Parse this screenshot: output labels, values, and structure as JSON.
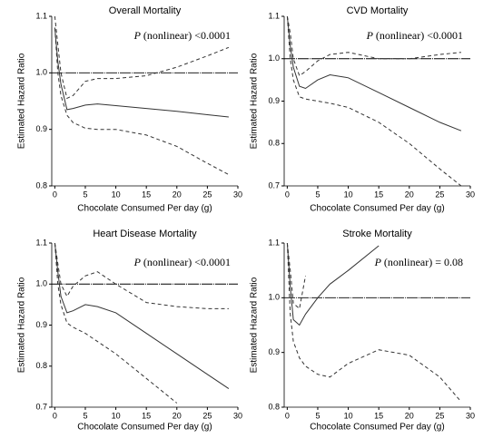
{
  "chart_data": [
    {
      "type": "line",
      "title": "Overall Mortality",
      "annotation": {
        "italic": "P",
        "text": "(nonlinear) <0.0001"
      },
      "x_label": "Chocolate Consumed Per day (g)",
      "y_label": "Estimated Hazard Ratio",
      "xlim": [
        -0.5,
        30
      ],
      "ylim": [
        0.8,
        1.1
      ],
      "xticks": [
        0,
        5,
        10,
        15,
        20,
        25,
        30
      ],
      "yticks": [
        0.8,
        0.9,
        {
          "value": 1,
          "label": "1.0"
        },
        1.1
      ],
      "reference_line": 1,
      "x": [
        0,
        0.5,
        1,
        2,
        3,
        5,
        7,
        10,
        15,
        20,
        25,
        28.5
      ],
      "series": [
        {
          "style": "solid",
          "color": "#333333",
          "values": [
            1.08,
            1.02,
            0.98,
            0.935,
            0.937,
            0.943,
            0.945,
            0.942,
            0.937,
            0.932,
            0.926,
            0.922
          ]
        },
        {
          "style": "dashed",
          "color": "#333333",
          "values": [
            1.08,
            1.0,
            0.96,
            0.925,
            0.912,
            0.902,
            0.9,
            0.9,
            0.89,
            0.87,
            0.84,
            0.82
          ]
        },
        {
          "style": "dashed",
          "color": "#333333",
          "values": [
            1.1,
            1.05,
            1.0,
            0.955,
            0.96,
            0.985,
            0.99,
            0.99,
            0.995,
            1.01,
            1.03,
            1.045
          ]
        }
      ]
    },
    {
      "type": "line",
      "title": "CVD Mortality",
      "annotation": {
        "italic": "P",
        "text": "(nonlinear) <0.0001"
      },
      "x_label": "Chocolate Consumed Per day (g)",
      "y_label": "Estimated Hazard Ratio",
      "xlim": [
        -0.5,
        30
      ],
      "ylim": [
        0.7,
        1.1
      ],
      "xticks": [
        0,
        5,
        10,
        15,
        20,
        25,
        30
      ],
      "yticks": [
        0.7,
        0.8,
        0.9,
        {
          "value": 1,
          "label": "1.0"
        },
        1.1
      ],
      "reference_line": 1,
      "x": [
        0,
        0.5,
        1,
        2,
        3,
        5,
        7,
        10,
        15,
        20,
        25,
        28.5
      ],
      "series": [
        {
          "style": "solid",
          "color": "#333333",
          "values": [
            1.1,
            1.03,
            0.98,
            0.935,
            0.93,
            0.95,
            0.962,
            0.955,
            0.92,
            0.885,
            0.85,
            0.83
          ]
        },
        {
          "style": "dashed",
          "color": "#333333",
          "values": [
            1.1,
            1.0,
            0.95,
            0.91,
            0.905,
            0.9,
            0.895,
            0.885,
            0.85,
            0.8,
            0.74,
            0.7
          ]
        },
        {
          "style": "dashed",
          "color": "#333333",
          "values": [
            1.1,
            1.06,
            1.0,
            0.96,
            0.97,
            0.995,
            1.01,
            1.015,
            1.0,
            1.0,
            1.01,
            1.015
          ]
        }
      ]
    },
    {
      "type": "line",
      "title": "Heart Disease Mortality",
      "annotation": {
        "italic": "P",
        "text": "(nonlinear) <0.0001"
      },
      "x_label": "Chocolate Consumed Per day (g)",
      "y_label": "Estimated Hazard Ratio",
      "xlim": [
        -0.5,
        30
      ],
      "ylim": [
        0.7,
        1.1
      ],
      "xticks": [
        0,
        5,
        10,
        15,
        20,
        25,
        30
      ],
      "yticks": [
        0.7,
        0.8,
        0.9,
        {
          "value": 1,
          "label": "1.0"
        },
        1.1
      ],
      "reference_line": 1,
      "x": [
        0,
        0.5,
        1,
        2,
        3,
        5,
        7,
        10,
        15,
        20,
        25,
        28.5
      ],
      "series": [
        {
          "style": "solid",
          "color": "#333333",
          "values": [
            1.1,
            1.03,
            0.97,
            0.93,
            0.935,
            0.95,
            0.945,
            0.93,
            0.88,
            0.83,
            0.78,
            0.745
          ]
        },
        {
          "style": "dashed",
          "color": "#333333",
          "values": [
            1.1,
            1.0,
            0.95,
            0.905,
            0.895,
            0.88,
            0.86,
            0.83,
            0.77,
            0.71,
            null,
            null
          ]
        },
        {
          "style": "dashed",
          "color": "#333333",
          "values": [
            1.1,
            1.05,
            1.0,
            0.97,
            0.995,
            1.02,
            1.03,
            1.0,
            0.955,
            0.945,
            0.94,
            0.94
          ]
        }
      ]
    },
    {
      "type": "line",
      "title": "Stroke Mortality",
      "annotation": {
        "italic": "P",
        "text": "(nonlinear) = 0.08"
      },
      "x_label": "Chocolate Consumed Per day (g)",
      "y_label": "Estimated Hazard Ratio",
      "xlim": [
        -0.5,
        30
      ],
      "ylim": [
        0.8,
        1.1
      ],
      "xticks": [
        0,
        5,
        10,
        15,
        20,
        25,
        30
      ],
      "yticks": [
        0.8,
        0.9,
        {
          "value": 1,
          "label": "1.0"
        },
        1.1
      ],
      "reference_line": 1,
      "x": [
        0,
        0.5,
        1,
        2,
        3,
        5,
        7,
        10,
        15,
        20,
        25,
        28.5
      ],
      "series": [
        {
          "style": "solid",
          "color": "#333333",
          "values": [
            1.1,
            1.02,
            0.96,
            0.95,
            0.97,
            1.0,
            1.025,
            1.05,
            1.095,
            null,
            null,
            null
          ]
        },
        {
          "style": "dashed",
          "color": "#333333",
          "values": [
            1.1,
            0.97,
            0.92,
            0.89,
            0.875,
            0.86,
            0.855,
            0.88,
            0.905,
            0.895,
            0.855,
            0.81
          ]
        },
        {
          "style": "dashed",
          "color": "#333333",
          "values": [
            1.1,
            1.05,
            0.99,
            0.98,
            1.04,
            null,
            null,
            null,
            null,
            null,
            null,
            null
          ]
        }
      ]
    }
  ]
}
